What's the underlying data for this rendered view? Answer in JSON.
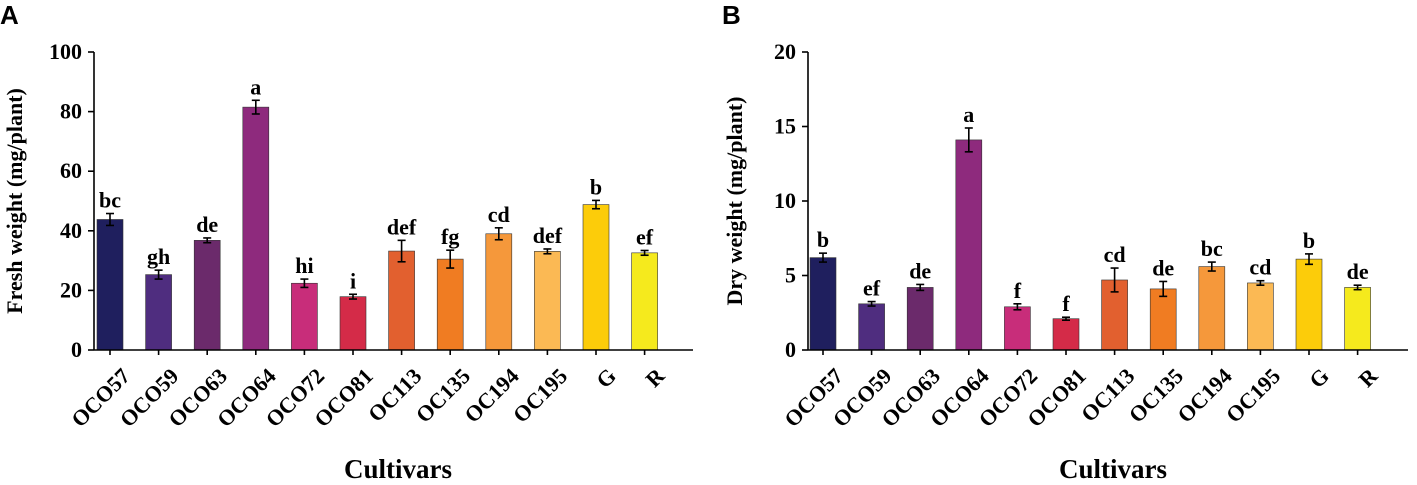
{
  "colors": [
    "#1f1f5e",
    "#4f2d7f",
    "#6b2a6b",
    "#8e2a7d",
    "#c82d7a",
    "#d42b48",
    "#e2602f",
    "#f07c22",
    "#f5983b",
    "#fbb954",
    "#fccc0a",
    "#f5ea1d"
  ],
  "chart_data": [
    {
      "id": "A",
      "type": "bar",
      "panel_label": "A",
      "categories": [
        "OCO57",
        "OCO59",
        "OCO63",
        "OCO64",
        "OCO72",
        "OCO81",
        "OC113",
        "OC135",
        "OC194",
        "OC195",
        "G",
        "R"
      ],
      "values": [
        43.8,
        25.3,
        36.8,
        81.5,
        22.4,
        17.9,
        33.2,
        30.5,
        39.0,
        33.1,
        48.8,
        32.6
      ],
      "errors": [
        2.0,
        1.5,
        0.8,
        2.3,
        1.4,
        0.8,
        3.6,
        3.0,
        2.0,
        0.8,
        1.4,
        0.8
      ],
      "significance": [
        "bc",
        "gh",
        "de",
        "a",
        "hi",
        "i",
        "def",
        "fg",
        "cd",
        "def",
        "b",
        "ef"
      ],
      "title": "",
      "xlabel": "Cultivars",
      "ylabel": "Fresh weight (mg/plant)",
      "ylim": [
        0,
        100
      ],
      "yticks": [
        0,
        20,
        40,
        60,
        80,
        100
      ],
      "ytick_labels": [
        "0",
        "20",
        "40",
        "60",
        "80",
        "100"
      ],
      "grid": false
    },
    {
      "id": "B",
      "type": "bar",
      "panel_label": "B",
      "categories": [
        "OCO57",
        "OCO59",
        "OCO63",
        "OCO64",
        "OCO72",
        "OCO81",
        "OC113",
        "OC135",
        "OC194",
        "OC195",
        "G",
        "R"
      ],
      "values": [
        6.2,
        3.1,
        4.2,
        14.1,
        2.9,
        2.1,
        4.7,
        4.1,
        5.6,
        4.5,
        6.1,
        4.2
      ],
      "errors": [
        0.3,
        0.15,
        0.2,
        0.8,
        0.2,
        0.1,
        0.8,
        0.5,
        0.3,
        0.15,
        0.35,
        0.15
      ],
      "significance": [
        "b",
        "ef",
        "de",
        "a",
        "f",
        "f",
        "cd",
        "de",
        "bc",
        "cd",
        "b",
        "de"
      ],
      "title": "",
      "xlabel": "Cultivars",
      "ylabel": "Dry weight (mg/plant)",
      "ylim": [
        0,
        20
      ],
      "yticks": [
        0,
        5,
        10,
        15,
        20
      ],
      "ytick_labels": [
        "0",
        "5",
        "10",
        "15",
        "20"
      ],
      "grid": false
    }
  ]
}
